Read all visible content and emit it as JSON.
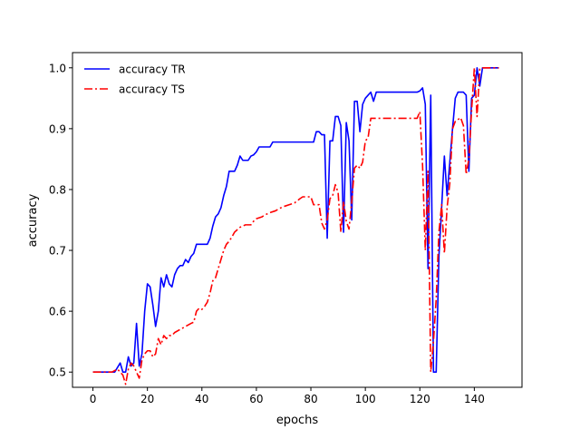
{
  "chart_data": {
    "type": "line",
    "title": "",
    "xlabel": "epochs",
    "ylabel": "accuracy",
    "xlim": [
      -7.5,
      157.5
    ],
    "ylim": [
      0.475,
      1.025
    ],
    "xticks": [
      0,
      20,
      40,
      60,
      80,
      100,
      120,
      140
    ],
    "yticks": [
      0.5,
      0.6,
      0.7,
      0.8,
      0.9,
      1.0
    ],
    "ytick_labels": [
      "0.5",
      "0.6",
      "0.7",
      "0.8",
      "0.9",
      "1.0"
    ],
    "grid": false,
    "legend": "upper left",
    "series": [
      {
        "name": "accuracy TR",
        "color": "#0000ff",
        "dash": "solid",
        "points": [
          [
            0,
            0.5
          ],
          [
            2,
            0.5
          ],
          [
            4,
            0.5
          ],
          [
            6,
            0.5
          ],
          [
            8,
            0.5
          ],
          [
            10,
            0.515
          ],
          [
            11,
            0.5
          ],
          [
            12,
            0.5
          ],
          [
            13,
            0.525
          ],
          [
            14,
            0.51
          ],
          [
            15,
            0.515
          ],
          [
            16,
            0.58
          ],
          [
            17,
            0.51
          ],
          [
            18,
            0.53
          ],
          [
            19,
            0.6
          ],
          [
            20,
            0.645
          ],
          [
            21,
            0.64
          ],
          [
            22,
            0.61
          ],
          [
            23,
            0.575
          ],
          [
            24,
            0.6
          ],
          [
            25,
            0.655
          ],
          [
            26,
            0.64
          ],
          [
            27,
            0.66
          ],
          [
            28,
            0.645
          ],
          [
            29,
            0.64
          ],
          [
            30,
            0.66
          ],
          [
            31,
            0.67
          ],
          [
            32,
            0.675
          ],
          [
            33,
            0.675
          ],
          [
            34,
            0.685
          ],
          [
            35,
            0.68
          ],
          [
            36,
            0.69
          ],
          [
            37,
            0.695
          ],
          [
            38,
            0.71
          ],
          [
            40,
            0.71
          ],
          [
            42,
            0.71
          ],
          [
            43,
            0.72
          ],
          [
            44,
            0.74
          ],
          [
            45,
            0.755
          ],
          [
            46,
            0.76
          ],
          [
            47,
            0.77
          ],
          [
            48,
            0.79
          ],
          [
            49,
            0.805
          ],
          [
            50,
            0.83
          ],
          [
            52,
            0.83
          ],
          [
            53,
            0.84
          ],
          [
            54,
            0.855
          ],
          [
            55,
            0.848
          ],
          [
            57,
            0.848
          ],
          [
            58,
            0.855
          ],
          [
            59,
            0.857
          ],
          [
            60,
            0.862
          ],
          [
            61,
            0.87
          ],
          [
            63,
            0.87
          ],
          [
            65,
            0.87
          ],
          [
            66,
            0.878
          ],
          [
            70,
            0.878
          ],
          [
            75,
            0.878
          ],
          [
            80,
            0.878
          ],
          [
            81,
            0.878
          ],
          [
            82,
            0.895
          ],
          [
            83,
            0.895
          ],
          [
            84,
            0.89
          ],
          [
            85,
            0.89
          ],
          [
            86,
            0.72
          ],
          [
            87,
            0.88
          ],
          [
            88,
            0.88
          ],
          [
            89,
            0.92
          ],
          [
            90,
            0.92
          ],
          [
            91,
            0.905
          ],
          [
            92,
            0.73
          ],
          [
            93,
            0.91
          ],
          [
            94,
            0.88
          ],
          [
            95,
            0.75
          ],
          [
            96,
            0.945
          ],
          [
            97,
            0.945
          ],
          [
            98,
            0.895
          ],
          [
            99,
            0.94
          ],
          [
            100,
            0.95
          ],
          [
            101,
            0.955
          ],
          [
            102,
            0.96
          ],
          [
            103,
            0.945
          ],
          [
            104,
            0.96
          ],
          [
            110,
            0.96
          ],
          [
            115,
            0.96
          ],
          [
            119,
            0.96
          ],
          [
            120,
            0.962
          ],
          [
            121,
            0.967
          ],
          [
            122,
            0.94
          ],
          [
            123,
            0.67
          ],
          [
            124,
            0.955
          ],
          [
            125,
            0.5
          ],
          [
            126,
            0.5
          ],
          [
            127,
            0.69
          ],
          [
            128,
            0.77
          ],
          [
            129,
            0.855
          ],
          [
            130,
            0.79
          ],
          [
            131,
            0.845
          ],
          [
            132,
            0.9
          ],
          [
            133,
            0.95
          ],
          [
            134,
            0.96
          ],
          [
            136,
            0.96
          ],
          [
            137,
            0.955
          ],
          [
            138,
            0.83
          ],
          [
            139,
            0.95
          ],
          [
            140,
            0.955
          ],
          [
            141,
            1.0
          ],
          [
            142,
            0.97
          ],
          [
            143,
            1.0
          ],
          [
            145,
            1.0
          ],
          [
            149,
            1.0
          ]
        ]
      },
      {
        "name": "accuracy TS",
        "color": "#ff0000",
        "dash": "dashdot",
        "points": [
          [
            0,
            0.5
          ],
          [
            3,
            0.5
          ],
          [
            5,
            0.5
          ],
          [
            7,
            0.5
          ],
          [
            9,
            0.505
          ],
          [
            10,
            0.5
          ],
          [
            11,
            0.495
          ],
          [
            12,
            0.48
          ],
          [
            13,
            0.505
          ],
          [
            14,
            0.515
          ],
          [
            15,
            0.51
          ],
          [
            16,
            0.5
          ],
          [
            17,
            0.49
          ],
          [
            18,
            0.52
          ],
          [
            19,
            0.53
          ],
          [
            20,
            0.535
          ],
          [
            21,
            0.535
          ],
          [
            22,
            0.525
          ],
          [
            23,
            0.53
          ],
          [
            24,
            0.555
          ],
          [
            25,
            0.545
          ],
          [
            26,
            0.56
          ],
          [
            27,
            0.555
          ],
          [
            28,
            0.56
          ],
          [
            29,
            0.56
          ],
          [
            30,
            0.565
          ],
          [
            32,
            0.57
          ],
          [
            34,
            0.575
          ],
          [
            36,
            0.58
          ],
          [
            37,
            0.582
          ],
          [
            38,
            0.6
          ],
          [
            39,
            0.605
          ],
          [
            40,
            0.603
          ],
          [
            41,
            0.608
          ],
          [
            42,
            0.615
          ],
          [
            43,
            0.63
          ],
          [
            44,
            0.65
          ],
          [
            45,
            0.655
          ],
          [
            46,
            0.67
          ],
          [
            47,
            0.685
          ],
          [
            48,
            0.7
          ],
          [
            49,
            0.71
          ],
          [
            50,
            0.715
          ],
          [
            51,
            0.722
          ],
          [
            52,
            0.73
          ],
          [
            54,
            0.738
          ],
          [
            55,
            0.74
          ],
          [
            56,
            0.742
          ],
          [
            58,
            0.742
          ],
          [
            59,
            0.748
          ],
          [
            60,
            0.752
          ],
          [
            62,
            0.755
          ],
          [
            63,
            0.758
          ],
          [
            65,
            0.762
          ],
          [
            67,
            0.765
          ],
          [
            69,
            0.77
          ],
          [
            70,
            0.772
          ],
          [
            72,
            0.775
          ],
          [
            74,
            0.778
          ],
          [
            76,
            0.785
          ],
          [
            77,
            0.788
          ],
          [
            80,
            0.788
          ],
          [
            81,
            0.775
          ],
          [
            83,
            0.775
          ],
          [
            84,
            0.745
          ],
          [
            85,
            0.735
          ],
          [
            86,
            0.75
          ],
          [
            87,
            0.785
          ],
          [
            88,
            0.79
          ],
          [
            89,
            0.808
          ],
          [
            90,
            0.795
          ],
          [
            91,
            0.73
          ],
          [
            92,
            0.78
          ],
          [
            93,
            0.748
          ],
          [
            94,
            0.735
          ],
          [
            95,
            0.78
          ],
          [
            96,
            0.835
          ],
          [
            97,
            0.84
          ],
          [
            98,
            0.835
          ],
          [
            99,
            0.845
          ],
          [
            100,
            0.88
          ],
          [
            101,
            0.885
          ],
          [
            102,
            0.917
          ],
          [
            105,
            0.917
          ],
          [
            110,
            0.917
          ],
          [
            115,
            0.917
          ],
          [
            119,
            0.917
          ],
          [
            120,
            0.928
          ],
          [
            121,
            0.84
          ],
          [
            122,
            0.7
          ],
          [
            123,
            0.83
          ],
          [
            124,
            0.5
          ],
          [
            125,
            0.55
          ],
          [
            126,
            0.62
          ],
          [
            127,
            0.73
          ],
          [
            128,
            0.775
          ],
          [
            129,
            0.695
          ],
          [
            130,
            0.77
          ],
          [
            131,
            0.81
          ],
          [
            132,
            0.9
          ],
          [
            133,
            0.912
          ],
          [
            134,
            0.915
          ],
          [
            135,
            0.918
          ],
          [
            136,
            0.905
          ],
          [
            137,
            0.825
          ],
          [
            138,
            0.85
          ],
          [
            139,
            0.93
          ],
          [
            140,
            1.0
          ],
          [
            141,
            0.92
          ],
          [
            142,
            0.998
          ],
          [
            143,
            1.0
          ],
          [
            145,
            1.0
          ],
          [
            149,
            1.0
          ]
        ]
      }
    ]
  }
}
